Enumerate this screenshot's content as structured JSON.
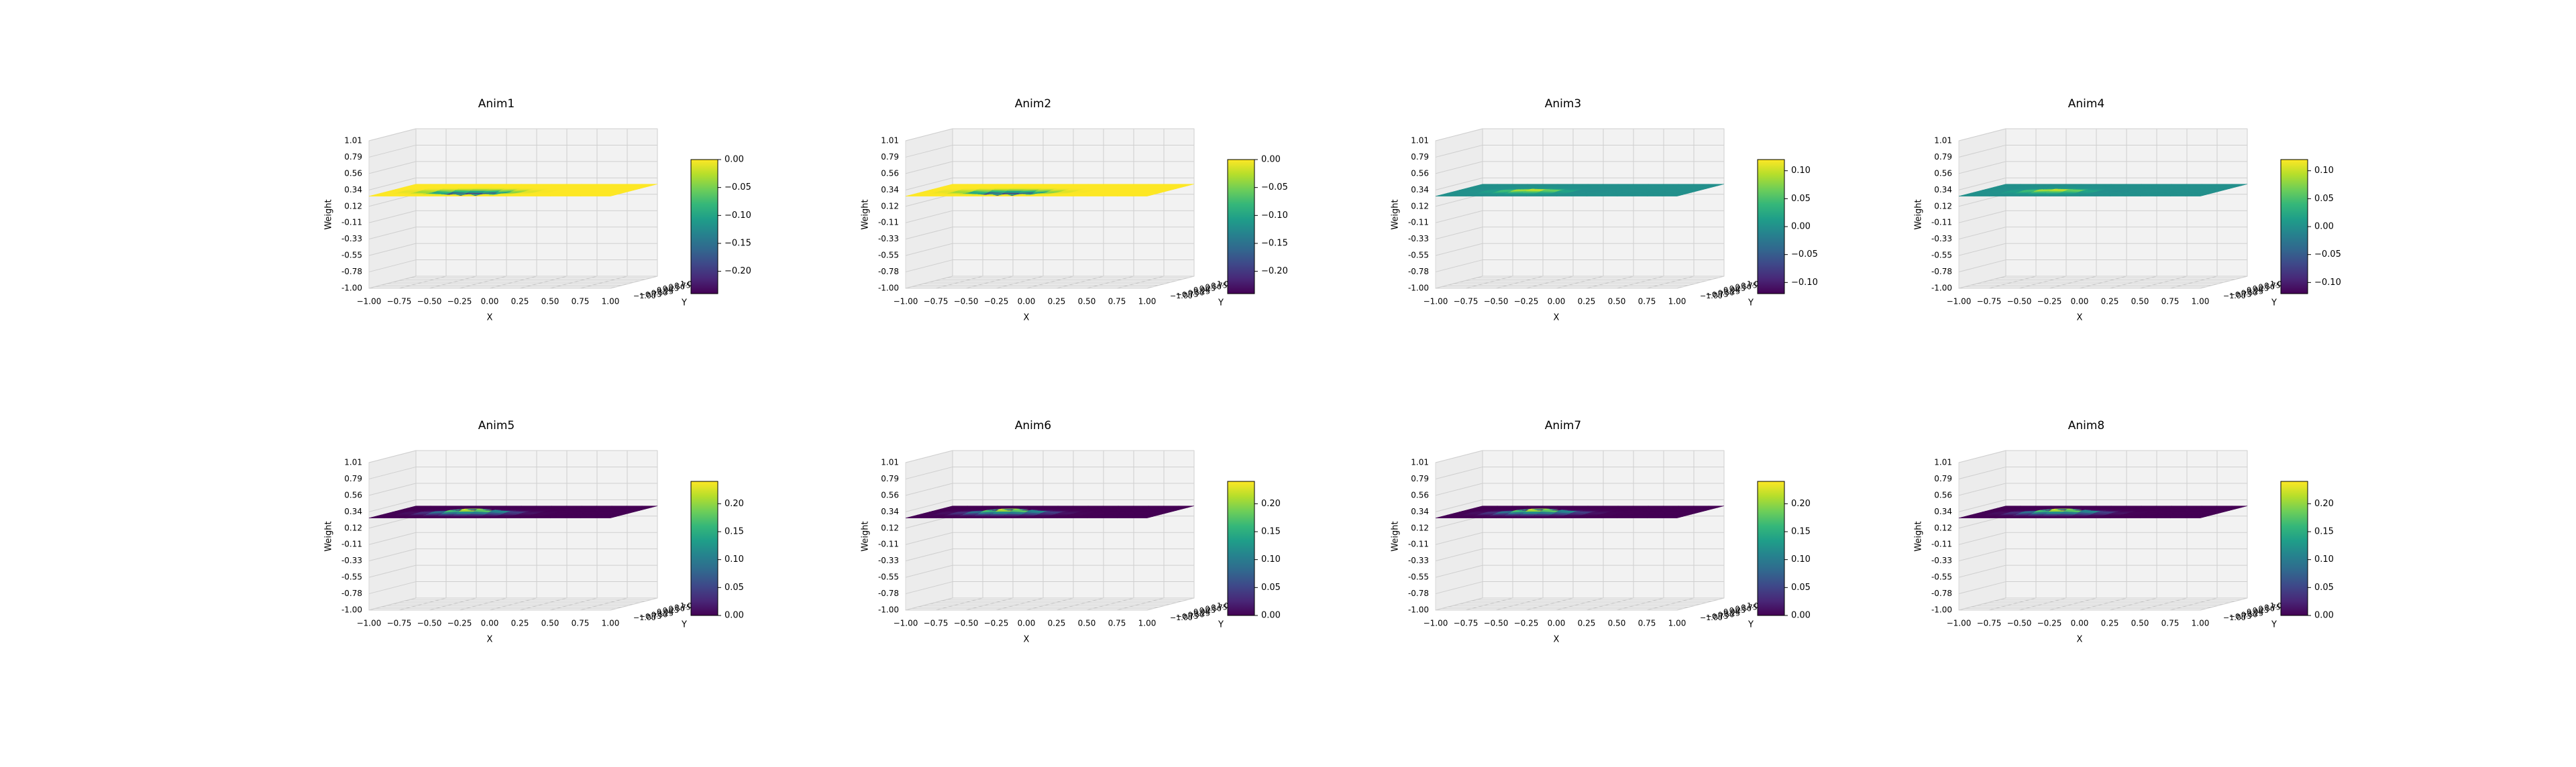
{
  "figure": {
    "colormap": "viridis",
    "grid": true,
    "colormap_stops": [
      "#440154",
      "#482878",
      "#3e4989",
      "#31688e",
      "#26828e",
      "#1f9e89",
      "#35b779",
      "#6ece58",
      "#b5de2b",
      "#fde725"
    ]
  },
  "chart_data": [
    {
      "type": "surface3d",
      "title": "Anim1",
      "xlabel": "X",
      "ylabel": "Y",
      "zlabel": "Weight",
      "x_ticks": [
        "−1.00",
        "−0.75",
        "−0.50",
        "−0.25",
        "0.00",
        "0.25",
        "0.50",
        "0.75",
        "1.00"
      ],
      "y_ticks": [
        "−1.00",
        "−0.75",
        "−0.50",
        "−0.25",
        "0.00",
        "0.25",
        "0.50",
        "0.75",
        "1.00"
      ],
      "z_ticks": [
        "1.01",
        "0.79",
        "0.56",
        "0.34",
        "0.12",
        "-0.11",
        "-0.33",
        "-0.55",
        "-0.78",
        "-1.00"
      ],
      "zlim": [
        -1.0,
        1.01
      ],
      "colorbar": {
        "ticks": [
          "0.00",
          "−0.05",
          "−0.10",
          "−0.15",
          "−0.20"
        ],
        "range": [
          -0.24,
          0.0
        ]
      }
    },
    {
      "type": "surface3d",
      "title": "Anim2",
      "xlabel": "X",
      "ylabel": "Y",
      "zlabel": "Weight",
      "x_ticks": [
        "−1.00",
        "−0.75",
        "−0.50",
        "−0.25",
        "0.00",
        "0.25",
        "0.50",
        "0.75",
        "1.00"
      ],
      "y_ticks": [
        "−1.00",
        "−0.75",
        "−0.50",
        "−0.25",
        "0.00",
        "0.25",
        "0.50",
        "0.75",
        "1.00"
      ],
      "z_ticks": [
        "1.01",
        "0.79",
        "0.56",
        "0.34",
        "0.12",
        "-0.11",
        "-0.33",
        "-0.55",
        "-0.78",
        "-1.00"
      ],
      "zlim": [
        -1.0,
        1.01
      ],
      "colorbar": {
        "ticks": [
          "0.00",
          "−0.05",
          "−0.10",
          "−0.15",
          "−0.20"
        ],
        "range": [
          -0.24,
          0.0
        ]
      }
    },
    {
      "type": "surface3d",
      "title": "Anim3",
      "xlabel": "X",
      "ylabel": "Y",
      "zlabel": "Weight",
      "x_ticks": [
        "−1.00",
        "−0.75",
        "−0.50",
        "−0.25",
        "0.00",
        "0.25",
        "0.50",
        "0.75",
        "1.00"
      ],
      "y_ticks": [
        "−1.00",
        "−0.75",
        "−0.50",
        "−0.25",
        "0.00",
        "0.25",
        "0.50",
        "0.75",
        "1.00"
      ],
      "z_ticks": [
        "1.01",
        "0.79",
        "0.56",
        "0.34",
        "0.12",
        "-0.11",
        "-0.33",
        "-0.55",
        "-0.78",
        "-1.00"
      ],
      "zlim": [
        -1.0,
        1.01
      ],
      "colorbar": {
        "ticks": [
          "0.10",
          "0.05",
          "0.00",
          "−0.05",
          "−0.10"
        ],
        "range": [
          -0.12,
          0.12
        ]
      }
    },
    {
      "type": "surface3d",
      "title": "Anim4",
      "xlabel": "X",
      "ylabel": "Y",
      "zlabel": "Weight",
      "x_ticks": [
        "−1.00",
        "−0.75",
        "−0.50",
        "−0.25",
        "0.00",
        "0.25",
        "0.50",
        "0.75",
        "1.00"
      ],
      "y_ticks": [
        "−1.00",
        "−0.75",
        "−0.50",
        "−0.25",
        "0.00",
        "0.25",
        "0.50",
        "0.75",
        "1.00"
      ],
      "z_ticks": [
        "1.01",
        "0.79",
        "0.56",
        "0.34",
        "0.12",
        "-0.11",
        "-0.33",
        "-0.55",
        "-0.78",
        "-1.00"
      ],
      "zlim": [
        -1.0,
        1.01
      ],
      "colorbar": {
        "ticks": [
          "0.10",
          "0.05",
          "0.00",
          "−0.05",
          "−0.10"
        ],
        "range": [
          -0.12,
          0.12
        ]
      }
    },
    {
      "type": "surface3d",
      "title": "Anim5",
      "xlabel": "X",
      "ylabel": "Y",
      "zlabel": "Weight",
      "x_ticks": [
        "−1.00",
        "−0.75",
        "−0.50",
        "−0.25",
        "0.00",
        "0.25",
        "0.50",
        "0.75",
        "1.00"
      ],
      "y_ticks": [
        "−1.00",
        "−0.75",
        "−0.50",
        "−0.25",
        "0.00",
        "0.25",
        "0.50",
        "0.75",
        "1.00"
      ],
      "z_ticks": [
        "1.01",
        "0.79",
        "0.56",
        "0.34",
        "0.12",
        "-0.11",
        "-0.33",
        "-0.55",
        "-0.78",
        "-1.00"
      ],
      "zlim": [
        -1.0,
        1.01
      ],
      "colorbar": {
        "ticks": [
          "0.20",
          "0.15",
          "0.10",
          "0.05",
          "0.00"
        ],
        "range": [
          0.0,
          0.24
        ]
      }
    },
    {
      "type": "surface3d",
      "title": "Anim6",
      "xlabel": "X",
      "ylabel": "Y",
      "zlabel": "Weight",
      "x_ticks": [
        "−1.00",
        "−0.75",
        "−0.50",
        "−0.25",
        "0.00",
        "0.25",
        "0.50",
        "0.75",
        "1.00"
      ],
      "y_ticks": [
        "−1.00",
        "−0.75",
        "−0.50",
        "−0.25",
        "0.00",
        "0.25",
        "0.50",
        "0.75",
        "1.00"
      ],
      "z_ticks": [
        "1.01",
        "0.79",
        "0.56",
        "0.34",
        "0.12",
        "-0.11",
        "-0.33",
        "-0.55",
        "-0.78",
        "-1.00"
      ],
      "zlim": [
        -1.0,
        1.01
      ],
      "colorbar": {
        "ticks": [
          "0.20",
          "0.15",
          "0.10",
          "0.05",
          "0.00"
        ],
        "range": [
          0.0,
          0.24
        ]
      }
    },
    {
      "type": "surface3d",
      "title": "Anim7",
      "xlabel": "X",
      "ylabel": "Y",
      "zlabel": "Weight",
      "x_ticks": [
        "−1.00",
        "−0.75",
        "−0.50",
        "−0.25",
        "0.00",
        "0.25",
        "0.50",
        "0.75",
        "1.00"
      ],
      "y_ticks": [
        "−1.00",
        "−0.75",
        "−0.50",
        "−0.25",
        "0.00",
        "0.25",
        "0.50",
        "0.75",
        "1.00"
      ],
      "z_ticks": [
        "1.01",
        "0.79",
        "0.56",
        "0.34",
        "0.12",
        "-0.11",
        "-0.33",
        "-0.55",
        "-0.78",
        "-1.00"
      ],
      "zlim": [
        -1.0,
        1.01
      ],
      "colorbar": {
        "ticks": [
          "0.20",
          "0.15",
          "0.10",
          "0.05",
          "0.00"
        ],
        "range": [
          0.0,
          0.24
        ]
      }
    },
    {
      "type": "surface3d",
      "title": "Anim8",
      "xlabel": "X",
      "ylabel": "Y",
      "zlabel": "Weight",
      "x_ticks": [
        "−1.00",
        "−0.75",
        "−0.50",
        "−0.25",
        "0.00",
        "0.25",
        "0.50",
        "0.75",
        "1.00"
      ],
      "y_ticks": [
        "−1.00",
        "−0.75",
        "−0.50",
        "−0.25",
        "0.00",
        "0.25",
        "0.50",
        "0.75",
        "1.00"
      ],
      "z_ticks": [
        "1.01",
        "0.79",
        "0.56",
        "0.34",
        "0.12",
        "-0.11",
        "-0.33",
        "-0.55",
        "-0.78",
        "-1.00"
      ],
      "zlim": [
        -1.0,
        1.01
      ],
      "colorbar": {
        "ticks": [
          "0.20",
          "0.15",
          "0.10",
          "0.05",
          "0.00"
        ],
        "range": [
          0.0,
          0.24
        ]
      }
    }
  ]
}
